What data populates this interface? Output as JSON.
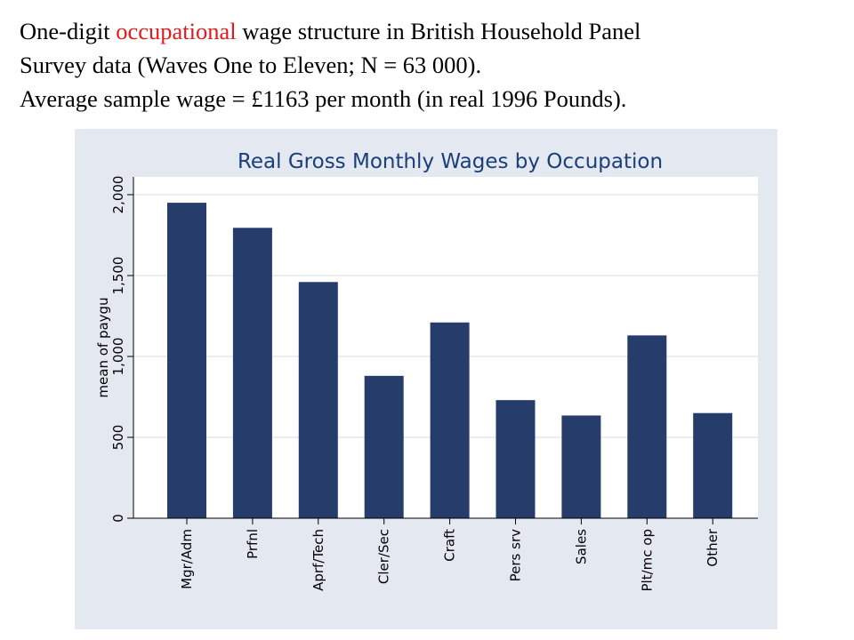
{
  "heading": {
    "line1_before": "One-digit ",
    "line1_accent": "occupational",
    "line1_after": " wage structure in British Household Panel",
    "line2": "Survey data (Waves One to Eleven; N = 63 000).",
    "line3": "Average sample wage  = £1163 per month (in real 1996 Pounds)."
  },
  "colors": {
    "accent": "#e31a1c",
    "bar": "#263c6b",
    "panel": "#e3e8f1",
    "plot_bg": "#ffffff",
    "grid": "#e3e8f1",
    "title": "#1b3f7a"
  },
  "chart_data": {
    "type": "bar",
    "title": "Real Gross Monthly Wages by Occupation",
    "xlabel": "",
    "ylabel": "mean of paygu",
    "categories": [
      "Mgr/Adm",
      "Prfnl",
      "Aprf/Tech",
      "Cler/Sec",
      "Craft",
      "Pers srv",
      "Sales",
      "Plt/mc op",
      "Other"
    ],
    "values": [
      1950,
      1795,
      1460,
      880,
      1210,
      730,
      635,
      1130,
      650
    ],
    "ylim": [
      0,
      2000
    ],
    "yticks": [
      0,
      500,
      1000,
      1500,
      2000
    ],
    "ytick_labels": [
      "0",
      "500",
      "1,000",
      "1,500",
      "2,000"
    ],
    "grid": true,
    "legend": "none"
  }
}
